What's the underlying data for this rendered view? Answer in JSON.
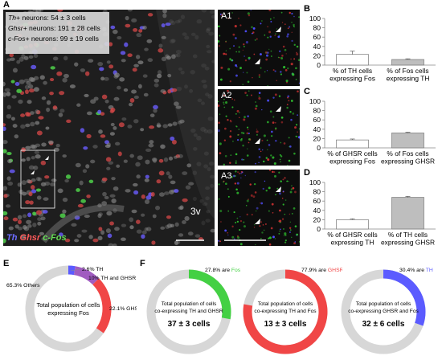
{
  "panels": {
    "A": "A",
    "A1": "A1",
    "A2": "A2",
    "A3": "A3",
    "B": "B",
    "C": "C",
    "D": "D",
    "E": "E",
    "F": "F"
  },
  "micrograph": {
    "stats": [
      {
        "marker": "Th+",
        "rest": " neurons: 54 ± 3 cells"
      },
      {
        "marker": "Ghsr+",
        "rest": " neurons: 191 ± 28 cells"
      },
      {
        "marker": "c-Fos+",
        "rest": " neurons: 99 ± 19 cells"
      }
    ],
    "ventricle_label": "3v",
    "legend": {
      "th": "Th",
      "ghsr": "Ghsr",
      "fos": "c-Fos"
    }
  },
  "colors": {
    "th": "#5b5bff",
    "ghsr": "#f04646",
    "fos": "#44d044",
    "th_ghsr": "#a05cc0",
    "other": "#d7d7d7",
    "bar_white": "#ffffff",
    "bar_gray": "#bebebe"
  },
  "chart_data": [
    {
      "id": "B",
      "type": "bar",
      "categories": [
        "% of TH cells expressing Fos",
        "% of Fos cells expressing TH"
      ],
      "category_lines": [
        [
          "% of TH cells",
          "expressing Fos"
        ],
        [
          "% of Fos cells",
          "expressing TH"
        ]
      ],
      "values": [
        23,
        12
      ],
      "errors": [
        7,
        1.5
      ],
      "ylim": [
        0,
        100
      ],
      "yticks": [
        0,
        20,
        40,
        60,
        80,
        100
      ]
    },
    {
      "id": "C",
      "type": "bar",
      "categories": [
        "% of GHSR cells expressing Fos",
        "% of Fos cells expressing GHSR"
      ],
      "category_lines": [
        [
          "% of GHSR cells",
          "expressing Fos"
        ],
        [
          "% of Fos cells",
          "expressing GHSR"
        ]
      ],
      "values": [
        17,
        32
      ],
      "errors": [
        2,
        1.5
      ],
      "ylim": [
        0,
        100
      ],
      "yticks": [
        0,
        20,
        40,
        60,
        80,
        100
      ]
    },
    {
      "id": "D",
      "type": "bar",
      "categories": [
        "% of GHSR cells expressing TH",
        "% of TH cells expressing GHSR"
      ],
      "category_lines": [
        [
          "% of GHSR cells",
          "expressing TH"
        ],
        [
          "% of TH cells",
          "expressing GHSR"
        ]
      ],
      "values": [
        20,
        68
      ],
      "errors": [
        2,
        2
      ],
      "ylim": [
        0,
        100
      ],
      "yticks": [
        0,
        20,
        40,
        60,
        80,
        100
      ]
    },
    {
      "id": "E",
      "type": "pie",
      "center_lines": [
        "Total population of cells",
        "expressing Fos"
      ],
      "slices": [
        {
          "label": "2.6% TH",
          "value": 2.6,
          "color_key": "th"
        },
        {
          "label": "10% TH and GHSR",
          "value": 10,
          "color_key": "th_ghsr"
        },
        {
          "label": "22.1% GHSR",
          "value": 22.1,
          "color_key": "ghsr"
        },
        {
          "label": "65.3% Others",
          "value": 65.3,
          "color_key": "other"
        }
      ]
    },
    {
      "id": "F1",
      "type": "pie",
      "percent_text": "27.8% are ",
      "marker_text": "Fos",
      "marker_color_key": "fos",
      "value": 27.8,
      "center_lines": [
        "Total population of cells",
        "co-expressing TH and GHSR"
      ],
      "count": "37 ± 3 cells"
    },
    {
      "id": "F2",
      "type": "pie",
      "percent_text": "77.9% are ",
      "marker_text": "GHSR",
      "marker_color_key": "ghsr",
      "value": 77.9,
      "center_lines": [
        "Total population of cells",
        "co-expressing TH and Fos"
      ],
      "count": "13 ± 3 cells"
    },
    {
      "id": "F3",
      "type": "pie",
      "percent_text": "30.4% are ",
      "marker_text": "TH",
      "marker_color_key": "th",
      "value": 30.4,
      "center_lines": [
        "Total population of cells",
        "co-expressing GHSR and Fos"
      ],
      "count": "32 ± 6 cells"
    }
  ]
}
